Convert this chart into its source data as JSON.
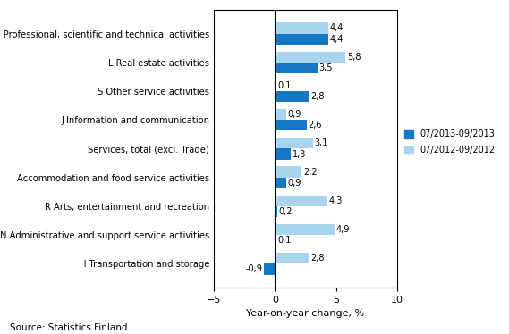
{
  "categories": [
    "M Professional, scientific and technical activities",
    "L Real estate activities",
    "S Other service activities",
    "J Information and communication",
    "Services, total (excl. Trade)",
    "I Accommodation and food service activities",
    "R Arts, entertainment and recreation",
    "N Administrative and support service activities",
    "H Transportation and storage"
  ],
  "series1_label": "07/2013-09/2013",
  "series2_label": "07/2012-09/2012",
  "series1_values": [
    4.4,
    3.5,
    2.8,
    2.6,
    1.3,
    0.9,
    0.2,
    0.1,
    -0.9
  ],
  "series2_values": [
    4.4,
    5.8,
    0.1,
    0.9,
    3.1,
    2.2,
    4.3,
    4.9,
    2.8
  ],
  "series1_color": "#1777C4",
  "series2_color": "#A8D4F0",
  "bar_height": 0.38,
  "xlim": [
    -5,
    10
  ],
  "xticks": [
    -5,
    0,
    5,
    10
  ],
  "xlabel": "Year-on-year change, %",
  "source_text": "Source: Statistics Finland"
}
